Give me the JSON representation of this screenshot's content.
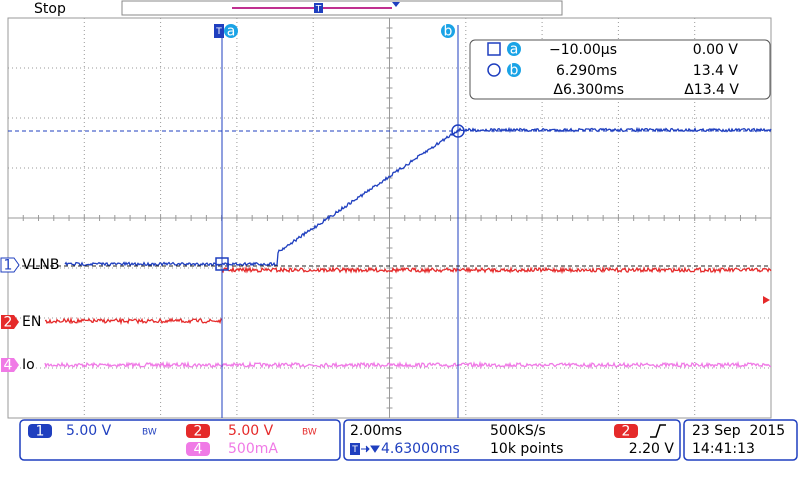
{
  "status": "Stop",
  "trigger_marker": "T",
  "cursors": [
    {
      "label": "a",
      "time": "−10.00µs",
      "value": "0.00 V"
    },
    {
      "label": "b",
      "time": "6.290ms",
      "value": "13.4 V"
    }
  ],
  "delta": {
    "time": "Δ6.300ms",
    "value": "Δ13.4 V"
  },
  "channels": [
    {
      "number": "1",
      "name": "VLNB",
      "scale": "5.00 V",
      "bandwidth": "BW"
    },
    {
      "number": "2",
      "name": "EN",
      "scale": "5.00 V",
      "bandwidth": "BW"
    },
    {
      "number": "4",
      "name": "Io",
      "scale": "500mA"
    }
  ],
  "horizontal": {
    "time_per_div": "2.00ms",
    "sample_rate": "500kS/s",
    "trigger_position": "4.63000ms",
    "record_length": "10k points"
  },
  "trigger": {
    "source": "2",
    "level": "2.20 V"
  },
  "clock": {
    "date": "23 Sep  2015",
    "time": "14:41:13"
  }
}
